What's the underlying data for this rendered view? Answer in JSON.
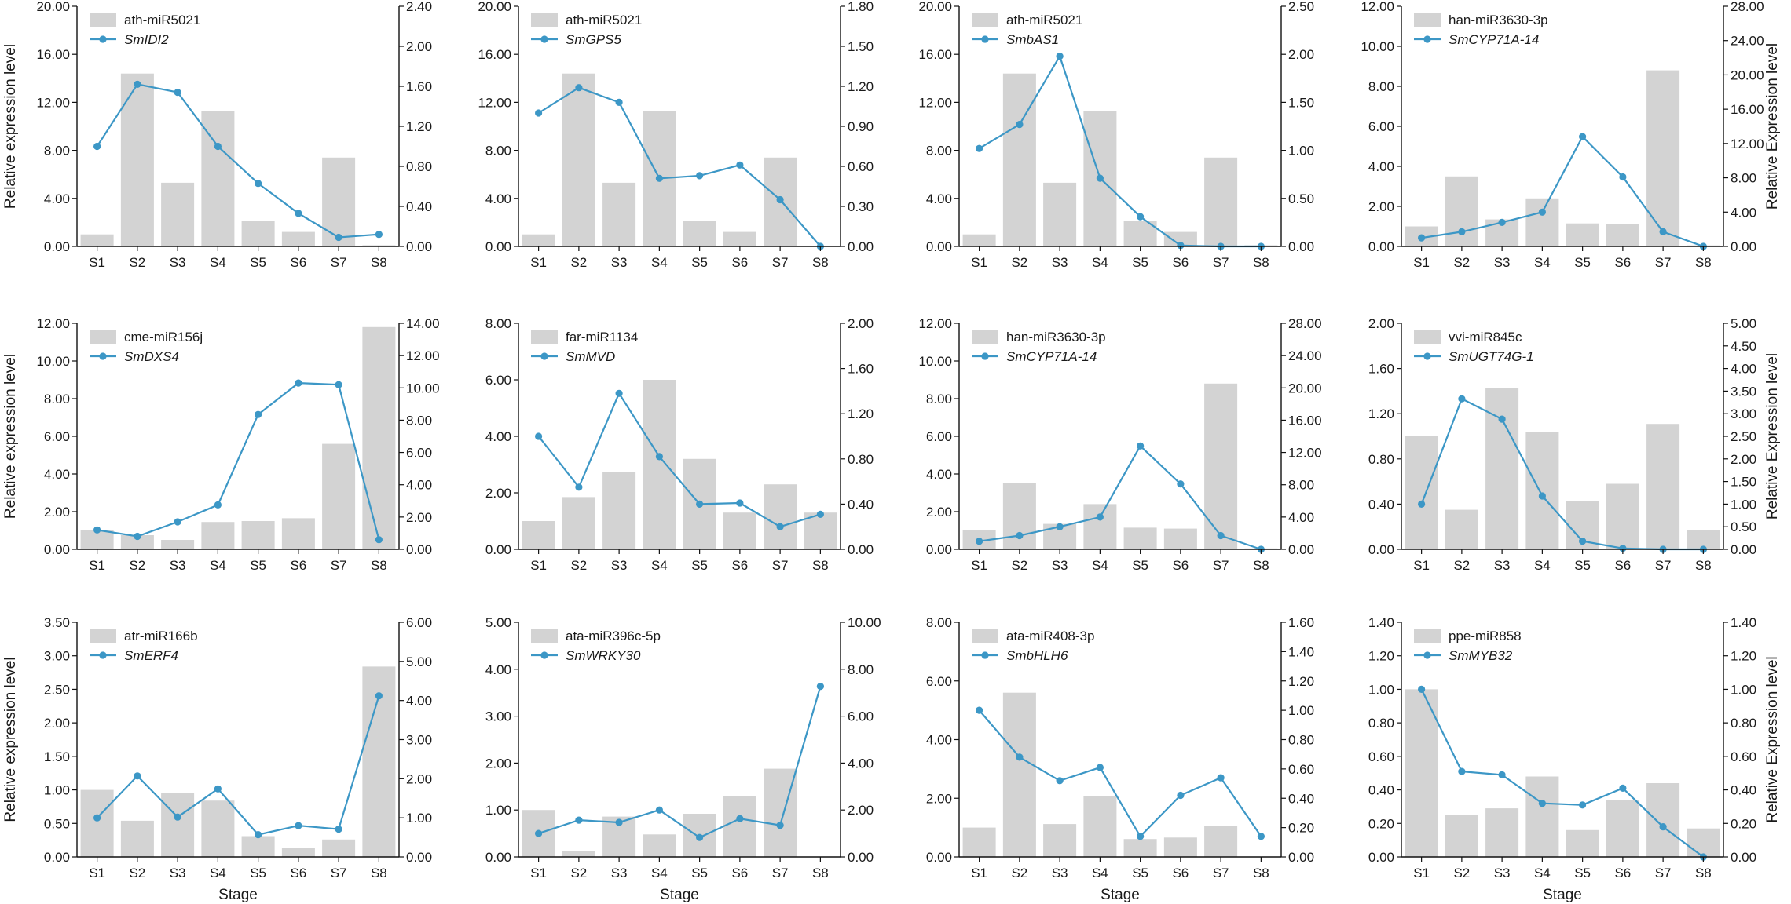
{
  "figure": {
    "bar_color": "#d3d3d3",
    "line_color": "#3c97c6",
    "x_axis_title": "Stage",
    "left_axis_title": "Relative expression level",
    "right_axis_title": "Relative Expression level"
  },
  "chart_data": [
    {
      "type": "bar+line",
      "position": "row1-col1",
      "categories": [
        "S1",
        "S2",
        "S3",
        "S4",
        "S5",
        "S6",
        "S7",
        "S8"
      ],
      "series": [
        {
          "name": "ath-miR5021",
          "kind": "bar",
          "axis": "left",
          "values": [
            1.0,
            14.4,
            5.3,
            11.3,
            2.1,
            1.2,
            7.4,
            0.1
          ]
        },
        {
          "name": "SmIDI2",
          "kind": "line",
          "axis": "right",
          "values": [
            1.0,
            1.62,
            1.54,
            1.0,
            0.63,
            0.33,
            0.09,
            0.12
          ]
        }
      ],
      "left": {
        "ylim": [
          0,
          20
        ],
        "ticks": [
          "0.00",
          "4.00",
          "8.00",
          "12.00",
          "16.00",
          "20.00"
        ]
      },
      "right": {
        "ylim": [
          0,
          2.4
        ],
        "ticks": [
          "0.00",
          "0.40",
          "0.80",
          "1.20",
          "1.60",
          "2.00",
          "2.40"
        ]
      },
      "ylabel_left": "Relative expression level",
      "ylabel_right": "",
      "xlabel": ""
    },
    {
      "type": "bar+line",
      "position": "row1-col2",
      "categories": [
        "S1",
        "S2",
        "S3",
        "S4",
        "S5",
        "S6",
        "S7",
        "S8"
      ],
      "series": [
        {
          "name": "ath-miR5021",
          "kind": "bar",
          "axis": "left",
          "values": [
            1.0,
            14.4,
            5.3,
            11.3,
            2.1,
            1.2,
            7.4,
            0.05
          ]
        },
        {
          "name": "SmGPS5",
          "kind": "line",
          "axis": "right",
          "values": [
            1.0,
            1.19,
            1.08,
            0.51,
            0.53,
            0.61,
            0.35,
            0.0
          ]
        }
      ],
      "left": {
        "ylim": [
          0,
          20
        ],
        "ticks": [
          "0.00",
          "4.00",
          "8.00",
          "12.00",
          "16.00",
          "20.00"
        ]
      },
      "right": {
        "ylim": [
          0,
          1.8
        ],
        "ticks": [
          "0.00",
          "0.30",
          "0.60",
          "0.90",
          "1.20",
          "1.50",
          "1.80"
        ]
      },
      "ylabel_left": "",
      "ylabel_right": "",
      "xlabel": ""
    },
    {
      "type": "bar+line",
      "position": "row1-col3",
      "categories": [
        "S1",
        "S2",
        "S3",
        "S4",
        "S5",
        "S6",
        "S7",
        "S8"
      ],
      "series": [
        {
          "name": "ath-miR5021",
          "kind": "bar",
          "axis": "left",
          "values": [
            1.0,
            14.4,
            5.3,
            11.3,
            2.1,
            1.2,
            7.4,
            0.1
          ]
        },
        {
          "name": "SmbAS1",
          "kind": "line",
          "axis": "right",
          "values": [
            1.02,
            1.27,
            1.98,
            0.71,
            0.31,
            0.01,
            0.0,
            0.0
          ]
        }
      ],
      "left": {
        "ylim": [
          0,
          20
        ],
        "ticks": [
          "0.00",
          "4.00",
          "8.00",
          "12.00",
          "16.00",
          "20.00"
        ]
      },
      "right": {
        "ylim": [
          0,
          2.5
        ],
        "ticks": [
          "0.00",
          "0.50",
          "1.00",
          "1.50",
          "2.00",
          "2.50"
        ]
      },
      "ylabel_left": "",
      "ylabel_right": "",
      "xlabel": ""
    },
    {
      "type": "bar+line",
      "position": "row1-col4",
      "categories": [
        "S1",
        "S2",
        "S3",
        "S4",
        "S5",
        "S6",
        "S7",
        "S8"
      ],
      "series": [
        {
          "name": "han-miR3630-3p",
          "kind": "bar",
          "axis": "left",
          "values": [
            1.0,
            3.5,
            1.35,
            2.4,
            1.15,
            1.1,
            8.8,
            0.05
          ]
        },
        {
          "name": "SmCYP71A-14",
          "kind": "line",
          "axis": "right",
          "values": [
            1.0,
            1.7,
            2.8,
            4.0,
            12.8,
            8.1,
            1.7,
            0.0
          ]
        }
      ],
      "left": {
        "ylim": [
          0,
          12
        ],
        "ticks": [
          "0.00",
          "2.00",
          "4.00",
          "6.00",
          "8.00",
          "10.00",
          "12.00"
        ]
      },
      "right": {
        "ylim": [
          0,
          28
        ],
        "ticks": [
          "0.00",
          "4.00",
          "8.00",
          "12.00",
          "16.00",
          "20.00",
          "24.00",
          "28.00"
        ]
      },
      "ylabel_left": "",
      "ylabel_right": "Relative Expression level",
      "xlabel": ""
    },
    {
      "type": "bar+line",
      "position": "row2-col1",
      "categories": [
        "S1",
        "S2",
        "S3",
        "S4",
        "S5",
        "S6",
        "S7",
        "S8"
      ],
      "series": [
        {
          "name": "cme-miR156j",
          "kind": "bar",
          "axis": "left",
          "values": [
            1.0,
            0.75,
            0.5,
            1.45,
            1.5,
            1.65,
            5.6,
            11.8
          ]
        },
        {
          "name": "SmDXS4",
          "kind": "line",
          "axis": "right",
          "values": [
            1.2,
            0.8,
            1.7,
            2.75,
            8.35,
            10.3,
            10.2,
            0.6
          ]
        }
      ],
      "left": {
        "ylim": [
          0,
          12
        ],
        "ticks": [
          "0.00",
          "2.00",
          "4.00",
          "6.00",
          "8.00",
          "10.00",
          "12.00"
        ]
      },
      "right": {
        "ylim": [
          0,
          14
        ],
        "ticks": [
          "0.00",
          "2.00",
          "4.00",
          "6.00",
          "8.00",
          "10.00",
          "12.00",
          "14.00"
        ]
      },
      "ylabel_left": "Relative expression level",
      "ylabel_right": "",
      "xlabel": ""
    },
    {
      "type": "bar+line",
      "position": "row2-col2",
      "categories": [
        "S1",
        "S2",
        "S3",
        "S4",
        "S5",
        "S6",
        "S7",
        "S8"
      ],
      "series": [
        {
          "name": "far-miR1134",
          "kind": "bar",
          "axis": "left",
          "values": [
            1.0,
            1.85,
            2.75,
            6.0,
            3.2,
            1.3,
            2.3,
            1.3
          ]
        },
        {
          "name": "SmMVD",
          "kind": "line",
          "axis": "right",
          "values": [
            1.0,
            0.55,
            1.38,
            0.82,
            0.4,
            0.41,
            0.2,
            0.31
          ]
        }
      ],
      "left": {
        "ylim": [
          0,
          8
        ],
        "ticks": [
          "0.00",
          "2.00",
          "4.00",
          "6.00",
          "8.00"
        ]
      },
      "right": {
        "ylim": [
          0,
          2
        ],
        "ticks": [
          "0.00",
          "0.40",
          "0.80",
          "1.20",
          "1.60",
          "2.00"
        ]
      },
      "ylabel_left": "",
      "ylabel_right": "",
      "xlabel": ""
    },
    {
      "type": "bar+line",
      "position": "row2-col3",
      "categories": [
        "S1",
        "S2",
        "S3",
        "S4",
        "S5",
        "S6",
        "S7",
        "S8"
      ],
      "series": [
        {
          "name": "han-miR3630-3p",
          "kind": "bar",
          "axis": "left",
          "values": [
            1.0,
            3.5,
            1.35,
            2.4,
            1.15,
            1.1,
            8.8,
            0.05
          ]
        },
        {
          "name": "SmCYP71A-14",
          "kind": "line",
          "axis": "right",
          "values": [
            1.0,
            1.7,
            2.8,
            4.0,
            12.8,
            8.1,
            1.7,
            0.0
          ]
        }
      ],
      "left": {
        "ylim": [
          0,
          12
        ],
        "ticks": [
          "0.00",
          "2.00",
          "4.00",
          "6.00",
          "8.00",
          "10.00",
          "12.00"
        ]
      },
      "right": {
        "ylim": [
          0,
          28
        ],
        "ticks": [
          "0.00",
          "4.00",
          "8.00",
          "12.00",
          "16.00",
          "20.00",
          "24.00",
          "28.00"
        ]
      },
      "ylabel_left": "",
      "ylabel_right": "",
      "xlabel": ""
    },
    {
      "type": "bar+line",
      "position": "row2-col4",
      "categories": [
        "S1",
        "S2",
        "S3",
        "S4",
        "S5",
        "S6",
        "S7",
        "S8"
      ],
      "series": [
        {
          "name": "vvi-miR845c",
          "kind": "bar",
          "axis": "left",
          "values": [
            1.0,
            0.35,
            1.43,
            1.04,
            0.43,
            0.58,
            1.11,
            0.17
          ]
        },
        {
          "name": "SmUGT74G-1",
          "kind": "line",
          "axis": "right",
          "values": [
            1.0,
            3.33,
            2.88,
            1.18,
            0.18,
            0.02,
            0.0,
            0.0
          ]
        }
      ],
      "left": {
        "ylim": [
          0,
          2
        ],
        "ticks": [
          "0.00",
          "0.40",
          "0.80",
          "1.20",
          "1.60",
          "2.00"
        ]
      },
      "right": {
        "ylim": [
          0,
          5
        ],
        "ticks": [
          "0.00",
          "0.50",
          "1.00",
          "1.50",
          "2.00",
          "2.50",
          "3.00",
          "3.50",
          "4.00",
          "4.50",
          "5.00"
        ]
      },
      "ylabel_left": "",
      "ylabel_right": "Relative Expression level",
      "xlabel": ""
    },
    {
      "type": "bar+line",
      "position": "row3-col1",
      "categories": [
        "S1",
        "S2",
        "S3",
        "S4",
        "S5",
        "S6",
        "S7",
        "S8"
      ],
      "series": [
        {
          "name": "atr-miR166b",
          "kind": "bar",
          "axis": "left",
          "values": [
            1.0,
            0.54,
            0.95,
            0.84,
            0.31,
            0.14,
            0.26,
            2.84
          ]
        },
        {
          "name": "SmERF4",
          "kind": "line",
          "axis": "right",
          "values": [
            1.0,
            2.07,
            1.02,
            1.74,
            0.57,
            0.8,
            0.71,
            4.12
          ]
        }
      ],
      "left": {
        "ylim": [
          0,
          3.5
        ],
        "ticks": [
          "0.00",
          "0.50",
          "1.00",
          "1.50",
          "2.00",
          "2.50",
          "3.00",
          "3.50"
        ]
      },
      "right": {
        "ylim": [
          0,
          6
        ],
        "ticks": [
          "0.00",
          "1.00",
          "2.00",
          "3.00",
          "4.00",
          "5.00",
          "6.00"
        ]
      },
      "ylabel_left": "Relative expression level",
      "ylabel_right": "",
      "xlabel": "Stage"
    },
    {
      "type": "bar+line",
      "position": "row3-col2",
      "categories": [
        "S1",
        "S2",
        "S3",
        "S4",
        "S5",
        "S6",
        "S7",
        "S8"
      ],
      "series": [
        {
          "name": "ata-miR396c-5p",
          "kind": "bar",
          "axis": "left",
          "values": [
            1.0,
            0.13,
            0.86,
            0.48,
            0.92,
            1.3,
            1.88,
            0.0
          ]
        },
        {
          "name": "SmWRKY30",
          "kind": "line",
          "axis": "right",
          "values": [
            1.0,
            1.57,
            1.47,
            2.0,
            0.83,
            1.63,
            1.35,
            7.27
          ]
        }
      ],
      "left": {
        "ylim": [
          0,
          5
        ],
        "ticks": [
          "0.00",
          "1.00",
          "2.00",
          "3.00",
          "4.00",
          "5.00"
        ]
      },
      "right": {
        "ylim": [
          0,
          10
        ],
        "ticks": [
          "0.00",
          "2.00",
          "4.00",
          "6.00",
          "8.00",
          "10.00"
        ]
      },
      "ylabel_left": "",
      "ylabel_right": "",
      "xlabel": "Stage"
    },
    {
      "type": "bar+line",
      "position": "row3-col3",
      "categories": [
        "S1",
        "S2",
        "S3",
        "S4",
        "S5",
        "S6",
        "S7",
        "S8"
      ],
      "series": [
        {
          "name": "ata-miR408-3p",
          "kind": "bar",
          "axis": "left",
          "values": [
            1.0,
            5.6,
            1.12,
            2.08,
            0.61,
            0.66,
            1.07,
            0.0
          ]
        },
        {
          "name": "SmbHLH6",
          "kind": "line",
          "axis": "right",
          "values": [
            1.0,
            0.68,
            0.52,
            0.61,
            0.14,
            0.42,
            0.54,
            0.14
          ]
        }
      ],
      "left": {
        "ylim": [
          0,
          8
        ],
        "ticks": [
          "0.00",
          "2.00",
          "4.00",
          "6.00",
          "8.00"
        ]
      },
      "right": {
        "ylim": [
          0,
          1.6
        ],
        "ticks": [
          "0.00",
          "0.20",
          "0.40",
          "0.60",
          "0.80",
          "1.00",
          "1.20",
          "1.40",
          "1.60"
        ]
      },
      "ylabel_left": "",
      "ylabel_right": "",
      "xlabel": "Stage"
    },
    {
      "type": "bar+line",
      "position": "row3-col4",
      "categories": [
        "S1",
        "S2",
        "S3",
        "S4",
        "S5",
        "S6",
        "S7",
        "S8"
      ],
      "series": [
        {
          "name": "ppe-miR858",
          "kind": "bar",
          "axis": "left",
          "values": [
            1.0,
            0.25,
            0.29,
            0.48,
            0.16,
            0.34,
            0.44,
            0.17
          ]
        },
        {
          "name": "SmMYB32",
          "kind": "line",
          "axis": "right",
          "values": [
            1.0,
            0.51,
            0.49,
            0.32,
            0.31,
            0.41,
            0.18,
            0.0
          ]
        }
      ],
      "left": {
        "ylim": [
          0,
          1.4
        ],
        "ticks": [
          "0.00",
          "0.20",
          "0.40",
          "0.60",
          "0.80",
          "1.00",
          "1.20",
          "1.40"
        ]
      },
      "right": {
        "ylim": [
          0,
          1.4
        ],
        "ticks": [
          "0.00",
          "0.20",
          "0.40",
          "0.60",
          "0.80",
          "1.00",
          "1.20",
          "1.40"
        ]
      },
      "ylabel_left": "",
      "ylabel_right": "Relative Expression level",
      "xlabel": "Stage"
    }
  ]
}
